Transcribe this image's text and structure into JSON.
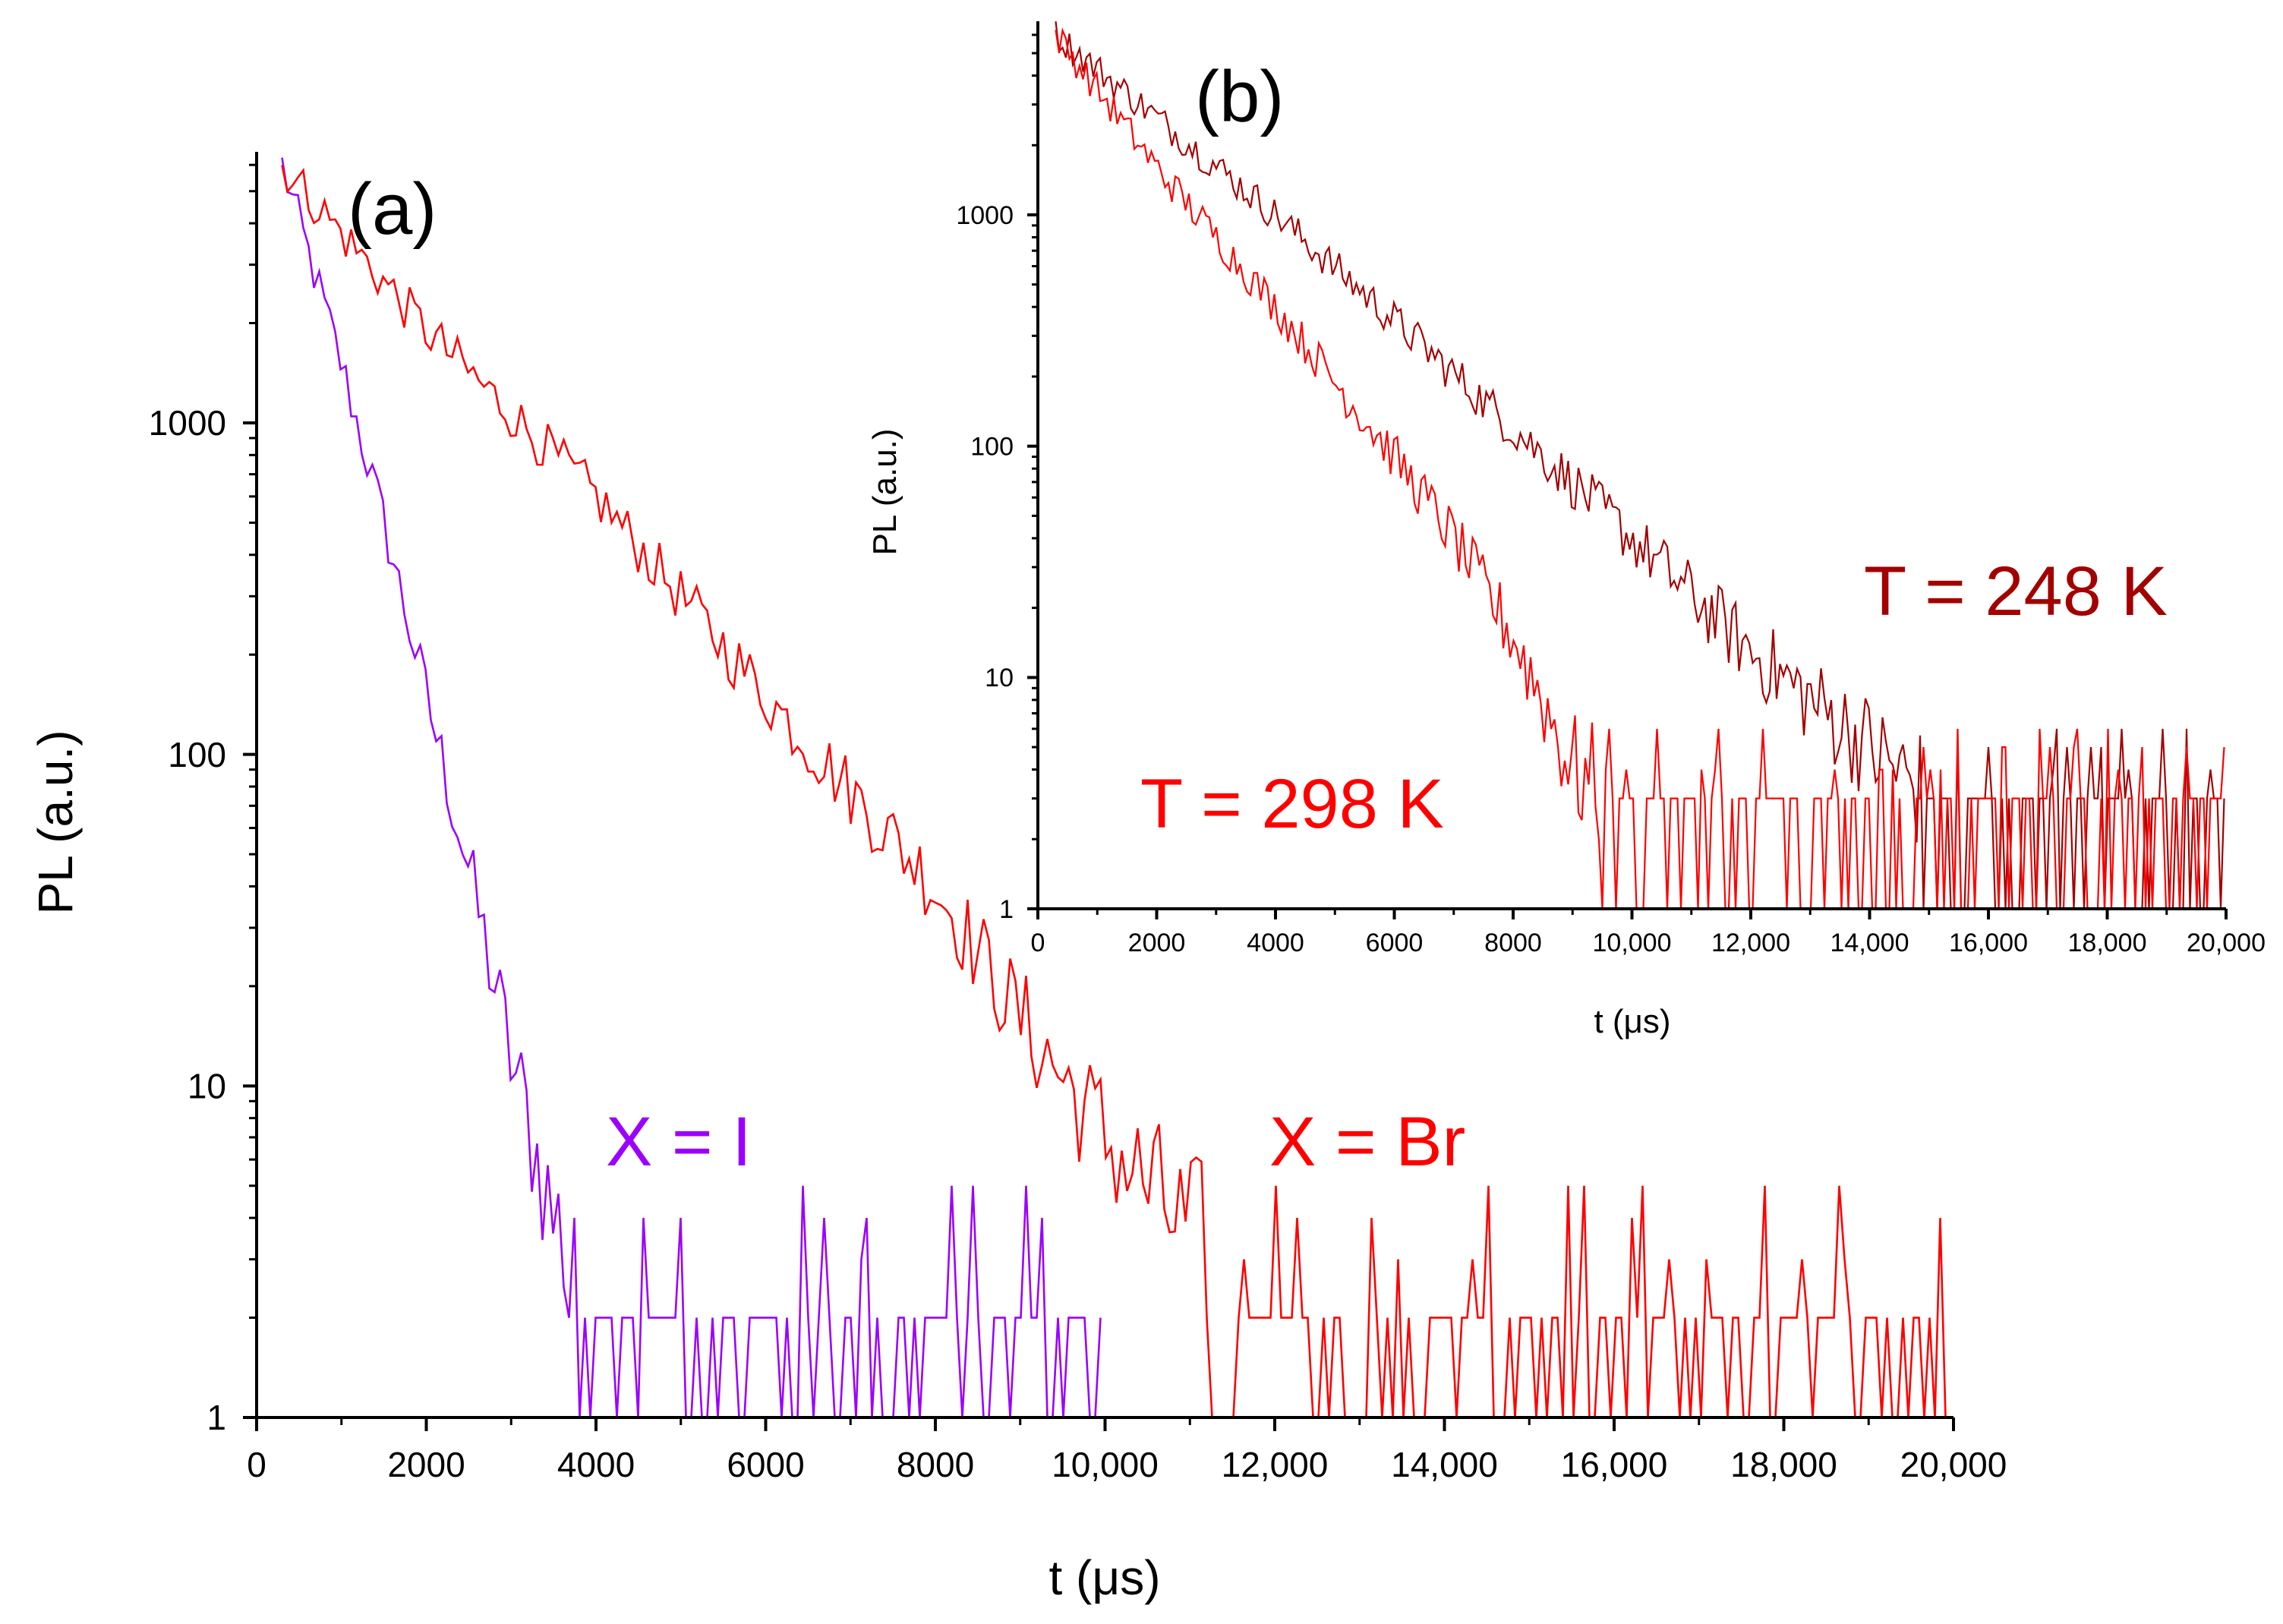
{
  "chart_data": [
    {
      "id": "a",
      "type": "line",
      "panel_label": "(a)",
      "xlabel": "t (μs)",
      "ylabel": "PL (a.u.)",
      "yscale": "log",
      "xlim": [
        0,
        20000
      ],
      "ylim": [
        1,
        7000
      ],
      "x_ticks": [
        {
          "v": 0,
          "label": "0"
        },
        {
          "v": 2000,
          "label": "2000"
        },
        {
          "v": 4000,
          "label": "4000"
        },
        {
          "v": 6000,
          "label": "6000"
        },
        {
          "v": 8000,
          "label": "8000"
        },
        {
          "v": 10000,
          "label": "10,000"
        },
        {
          "v": 12000,
          "label": "12,000"
        },
        {
          "v": 14000,
          "label": "14,000"
        },
        {
          "v": 16000,
          "label": "16,000"
        },
        {
          "v": 18000,
          "label": "18,000"
        },
        {
          "v": 20000,
          "label": "20,000"
        }
      ],
      "y_ticks": [
        {
          "v": 1,
          "label": "1"
        },
        {
          "v": 10,
          "label": "10"
        },
        {
          "v": 100,
          "label": "100"
        },
        {
          "v": 1000,
          "label": "1000"
        }
      ],
      "series": [
        {
          "name": "X = I",
          "color": "#9b00ff",
          "x_start": 300,
          "x_end": 10000,
          "peak": 6000,
          "points": [
            [
              300,
              6000
            ],
            [
              1000,
              1500
            ],
            [
              1500,
              500
            ],
            [
              2000,
              150
            ],
            [
              2500,
              45
            ],
            [
              3000,
              12
            ],
            [
              3500,
              4
            ],
            [
              4000,
              2
            ],
            [
              10000,
              1.5
            ]
          ],
          "noise_floor": [
            1,
            2
          ]
        },
        {
          "name": "X = Br",
          "color": "#ff0000",
          "x_start": 300,
          "x_end": 20000,
          "peak": 6000,
          "points": [
            [
              300,
              6000
            ],
            [
              2000,
              1900
            ],
            [
              4000,
              600
            ],
            [
              6000,
              150
            ],
            [
              8000,
              40
            ],
            [
              9000,
              16
            ],
            [
              10000,
              7
            ],
            [
              11000,
              3.5
            ],
            [
              12000,
              2
            ],
            [
              20000,
              1.7
            ]
          ],
          "noise_floor": [
            1,
            2
          ]
        }
      ],
      "annotations": [
        {
          "text": "X = I",
          "color": "#9b00ff"
        },
        {
          "text": "X = Br",
          "color": "#ff0000"
        }
      ]
    },
    {
      "id": "b",
      "type": "line",
      "panel_label": "(b)",
      "xlabel": "t (μs)",
      "ylabel": "PL (a.u.)",
      "yscale": "log",
      "xlim": [
        0,
        20000
      ],
      "ylim": [
        1,
        7000
      ],
      "x_ticks": [
        {
          "v": 0,
          "label": "0"
        },
        {
          "v": 2000,
          "label": "2000"
        },
        {
          "v": 4000,
          "label": "4000"
        },
        {
          "v": 6000,
          "label": "6000"
        },
        {
          "v": 8000,
          "label": "8000"
        },
        {
          "v": 10000,
          "label": "10,000"
        },
        {
          "v": 12000,
          "label": "12,000"
        },
        {
          "v": 14000,
          "label": "14,000"
        },
        {
          "v": 16000,
          "label": "16,000"
        },
        {
          "v": 18000,
          "label": "18,000"
        },
        {
          "v": 20000,
          "label": "20,000"
        }
      ],
      "y_ticks": [
        {
          "v": 1,
          "label": "1"
        },
        {
          "v": 10,
          "label": "10"
        },
        {
          "v": 100,
          "label": "100"
        },
        {
          "v": 1000,
          "label": "1000"
        }
      ],
      "series": [
        {
          "name": "T = 248 K",
          "color": "#a30000",
          "x_start": 300,
          "x_end": 20000,
          "peak": 6000,
          "points": [
            [
              300,
              6000
            ],
            [
              4000,
              1000
            ],
            [
              6000,
              350
            ],
            [
              8000,
              120
            ],
            [
              10000,
              40
            ],
            [
              12000,
              13
            ],
            [
              13000,
              8
            ],
            [
              14000,
              5
            ],
            [
              15000,
              3
            ],
            [
              16000,
              2.2
            ],
            [
              20000,
              2
            ]
          ],
          "noise_floor": [
            1,
            3
          ]
        },
        {
          "name": "T = 298 K",
          "color": "#ff0000",
          "x_start": 300,
          "x_end": 20000,
          "peak": 6000,
          "points": [
            [
              300,
              6000
            ],
            [
              2000,
              1600
            ],
            [
              4000,
              400
            ],
            [
              6000,
              90
            ],
            [
              7000,
              40
            ],
            [
              8000,
              15
            ],
            [
              8500,
              8
            ],
            [
              9000,
              4
            ],
            [
              10000,
              2.5
            ],
            [
              20000,
              2
            ]
          ],
          "noise_floor": [
            1,
            3
          ]
        }
      ],
      "annotations": [
        {
          "text": "T = 248 K",
          "color": "#a30000"
        },
        {
          "text": "T = 298 K",
          "color": "#ff0000"
        }
      ]
    }
  ]
}
